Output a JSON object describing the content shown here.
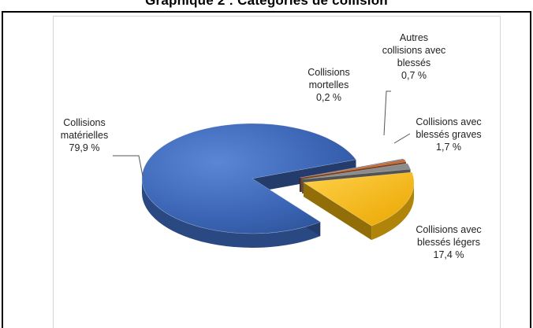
{
  "chart_data": {
    "type": "pie",
    "title": "Graphique 2 : Catégories de collision",
    "slices": [
      {
        "label_lines": [
          "Collisions",
          "matérielles"
        ],
        "value_text": "79,9 %",
        "value": 79.9,
        "color": "#3a64b3"
      },
      {
        "label_lines": [
          "Collisions avec",
          "blessés légers"
        ],
        "value_text": "17,4 %",
        "value": 17.4,
        "color": "#f3b70d"
      },
      {
        "label_lines": [
          "Collisions avec",
          "blessés graves"
        ],
        "value_text": "1,7 %",
        "value": 1.7,
        "color": "#8b8b8b"
      },
      {
        "label_lines": [
          "Collisions",
          "mortelles"
        ],
        "value_text": "0,2 %",
        "value": 0.2,
        "color": "#2e3f63"
      },
      {
        "label_lines": [
          "Autres",
          "collisions avec",
          "blessés"
        ],
        "value_text": "0,7 %",
        "value": 0.7,
        "color": "#c46a35"
      }
    ]
  }
}
